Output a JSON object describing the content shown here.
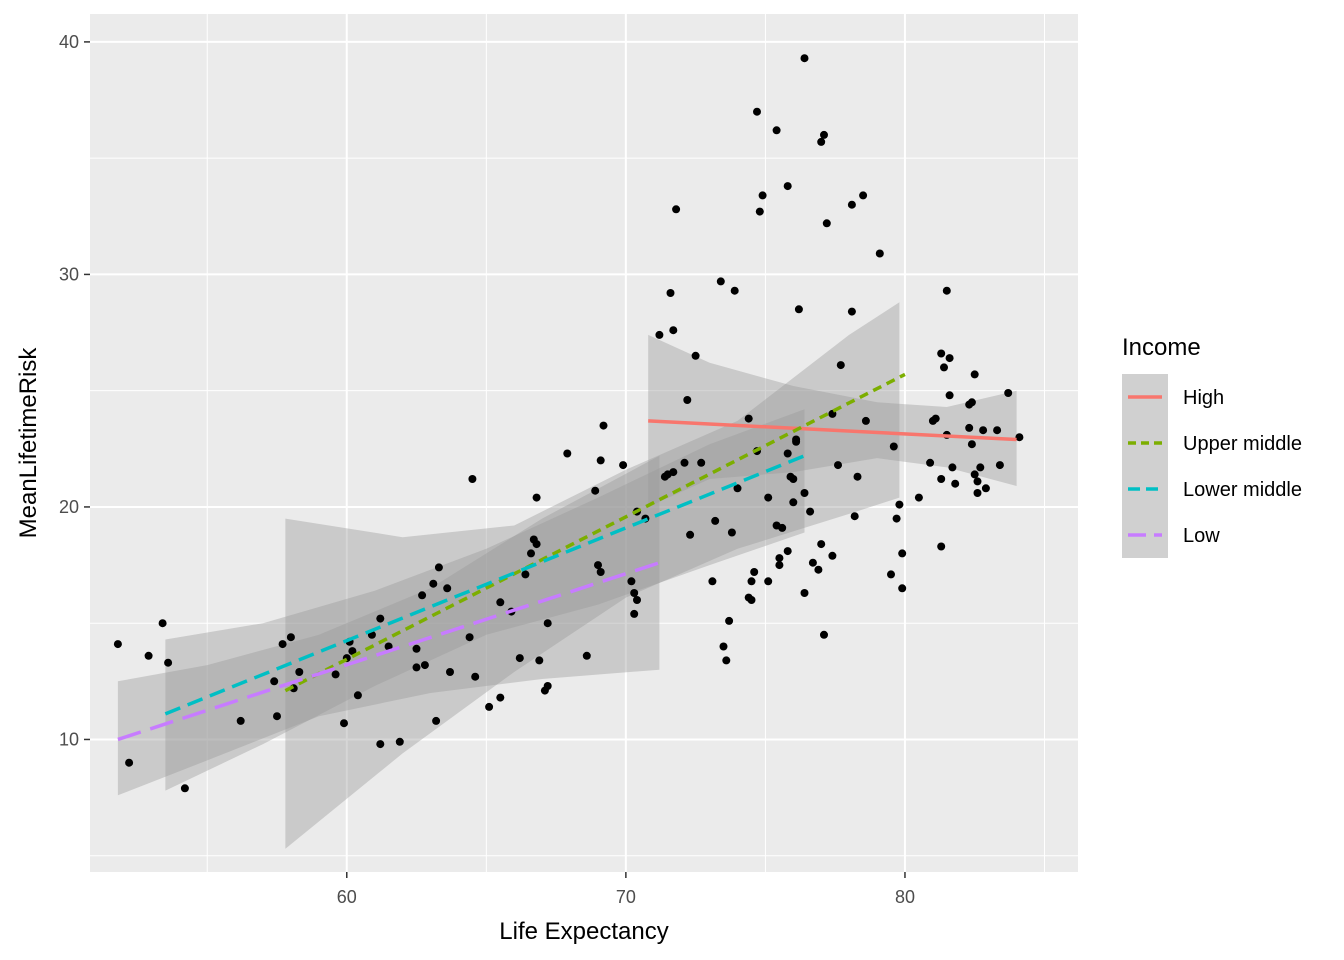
{
  "chart_data": {
    "type": "scatter",
    "xlabel": "Life Expectancy",
    "ylabel": "MeanLifetimeRisk",
    "xlim": [
      50.8,
      86.2
    ],
    "ylim": [
      4.3,
      41.2
    ],
    "xticks": [
      60,
      70,
      80
    ],
    "xminor": [
      55,
      65,
      75,
      85
    ],
    "yticks": [
      10,
      20,
      30,
      40
    ],
    "yminor": [
      5,
      15,
      25,
      35
    ],
    "panel_background": "#ebebeb",
    "grid_color": "#ffffff",
    "grid": true,
    "legend": {
      "title": "Income",
      "placement": "right",
      "entries": [
        {
          "label": "High",
          "color": "#f8766d",
          "dash": "solid"
        },
        {
          "label": "Upper middle",
          "color": "#7cae00",
          "dash": "short"
        },
        {
          "label": "Lower middle",
          "color": "#00bfc4",
          "dash": "medium"
        },
        {
          "label": "Low",
          "color": "#c77cff",
          "dash": "long"
        }
      ]
    },
    "points": [
      [
        51.8,
        14.1
      ],
      [
        52.2,
        9.0
      ],
      [
        52.9,
        13.6
      ],
      [
        53.4,
        15.0
      ],
      [
        53.6,
        13.3
      ],
      [
        54.2,
        7.9
      ],
      [
        56.2,
        10.8
      ],
      [
        57.4,
        12.5
      ],
      [
        57.5,
        11.0
      ],
      [
        57.7,
        14.1
      ],
      [
        58.0,
        14.4
      ],
      [
        58.1,
        12.2
      ],
      [
        58.3,
        12.9
      ],
      [
        59.6,
        12.8
      ],
      [
        59.9,
        10.7
      ],
      [
        60.0,
        13.5
      ],
      [
        60.1,
        14.2
      ],
      [
        60.2,
        13.8
      ],
      [
        60.4,
        11.9
      ],
      [
        60.9,
        14.5
      ],
      [
        61.2,
        15.2
      ],
      [
        61.2,
        9.8
      ],
      [
        61.5,
        14.0
      ],
      [
        61.9,
        9.9
      ],
      [
        62.5,
        13.9
      ],
      [
        62.5,
        13.1
      ],
      [
        62.7,
        16.2
      ],
      [
        62.8,
        13.2
      ],
      [
        63.1,
        16.7
      ],
      [
        63.2,
        10.8
      ],
      [
        63.3,
        17.4
      ],
      [
        63.6,
        16.5
      ],
      [
        63.7,
        12.9
      ],
      [
        64.4,
        14.4
      ],
      [
        64.5,
        21.2
      ],
      [
        64.6,
        12.7
      ],
      [
        65.1,
        11.4
      ],
      [
        65.5,
        11.8
      ],
      [
        65.5,
        15.9
      ],
      [
        65.9,
        15.5
      ],
      [
        66.2,
        13.5
      ],
      [
        66.4,
        17.1
      ],
      [
        66.6,
        18.0
      ],
      [
        66.7,
        18.6
      ],
      [
        66.8,
        18.4
      ],
      [
        66.8,
        20.4
      ],
      [
        66.9,
        13.4
      ],
      [
        67.1,
        12.1
      ],
      [
        67.2,
        12.3
      ],
      [
        67.2,
        15.0
      ],
      [
        67.9,
        22.3
      ],
      [
        68.6,
        13.6
      ],
      [
        68.9,
        20.7
      ],
      [
        69.0,
        17.5
      ],
      [
        69.1,
        17.2
      ],
      [
        69.1,
        22.0
      ],
      [
        69.2,
        23.5
      ],
      [
        69.9,
        21.8
      ],
      [
        70.2,
        16.8
      ],
      [
        70.3,
        15.4
      ],
      [
        70.3,
        16.3
      ],
      [
        70.4,
        19.8
      ],
      [
        70.4,
        16.0
      ],
      [
        70.7,
        19.5
      ],
      [
        71.2,
        27.4
      ],
      [
        71.4,
        21.3
      ],
      [
        71.5,
        21.4
      ],
      [
        71.6,
        29.2
      ],
      [
        71.7,
        21.5
      ],
      [
        71.7,
        27.6
      ],
      [
        71.8,
        32.8
      ],
      [
        72.1,
        21.9
      ],
      [
        72.2,
        24.6
      ],
      [
        72.3,
        18.8
      ],
      [
        72.5,
        26.5
      ],
      [
        72.7,
        21.9
      ],
      [
        73.1,
        16.8
      ],
      [
        73.2,
        19.4
      ],
      [
        73.4,
        29.7
      ],
      [
        73.5,
        14.0
      ],
      [
        73.6,
        13.4
      ],
      [
        73.7,
        15.1
      ],
      [
        73.8,
        18.9
      ],
      [
        73.9,
        29.3
      ],
      [
        74.0,
        20.8
      ],
      [
        74.4,
        23.8
      ],
      [
        74.4,
        16.1
      ],
      [
        74.5,
        16.0
      ],
      [
        74.5,
        16.8
      ],
      [
        74.6,
        17.2
      ],
      [
        74.7,
        37.0
      ],
      [
        74.7,
        22.4
      ],
      [
        74.8,
        32.7
      ],
      [
        74.9,
        33.4
      ],
      [
        75.1,
        20.4
      ],
      [
        75.1,
        16.8
      ],
      [
        75.4,
        36.2
      ],
      [
        75.4,
        19.2
      ],
      [
        75.5,
        17.5
      ],
      [
        75.5,
        17.8
      ],
      [
        75.6,
        19.1
      ],
      [
        75.8,
        18.1
      ],
      [
        75.8,
        33.8
      ],
      [
        75.8,
        22.3
      ],
      [
        75.9,
        21.3
      ],
      [
        76.0,
        20.2
      ],
      [
        76.0,
        21.2
      ],
      [
        76.1,
        22.8
      ],
      [
        76.1,
        22.9
      ],
      [
        76.2,
        28.5
      ],
      [
        76.4,
        20.6
      ],
      [
        76.4,
        16.3
      ],
      [
        76.4,
        39.3
      ],
      [
        76.6,
        19.8
      ],
      [
        76.7,
        17.6
      ],
      [
        76.9,
        17.3
      ],
      [
        77.0,
        35.7
      ],
      [
        77.0,
        18.4
      ],
      [
        77.1,
        36.0
      ],
      [
        77.1,
        14.5
      ],
      [
        77.2,
        32.2
      ],
      [
        77.4,
        17.9
      ],
      [
        77.4,
        24.0
      ],
      [
        77.6,
        21.8
      ],
      [
        77.7,
        26.1
      ],
      [
        78.1,
        28.4
      ],
      [
        78.1,
        33.0
      ],
      [
        78.2,
        19.6
      ],
      [
        78.3,
        21.3
      ],
      [
        78.5,
        33.4
      ],
      [
        78.6,
        23.7
      ],
      [
        79.1,
        30.9
      ],
      [
        79.5,
        17.1
      ],
      [
        79.6,
        22.6
      ],
      [
        79.7,
        19.5
      ],
      [
        79.8,
        20.1
      ],
      [
        79.9,
        16.5
      ],
      [
        79.9,
        18.0
      ],
      [
        80.5,
        20.4
      ],
      [
        80.9,
        21.9
      ],
      [
        81.0,
        23.7
      ],
      [
        81.1,
        23.8
      ],
      [
        81.3,
        26.6
      ],
      [
        81.3,
        21.2
      ],
      [
        81.3,
        18.3
      ],
      [
        81.4,
        26.0
      ],
      [
        81.5,
        23.1
      ],
      [
        81.5,
        29.3
      ],
      [
        81.6,
        26.4
      ],
      [
        81.6,
        24.8
      ],
      [
        81.7,
        21.7
      ],
      [
        81.8,
        21.0
      ],
      [
        82.3,
        23.4
      ],
      [
        82.3,
        24.4
      ],
      [
        82.4,
        22.7
      ],
      [
        82.4,
        24.5
      ],
      [
        82.5,
        25.7
      ],
      [
        82.5,
        21.4
      ],
      [
        82.6,
        21.1
      ],
      [
        82.6,
        20.6
      ],
      [
        82.7,
        21.7
      ],
      [
        82.8,
        23.3
      ],
      [
        82.9,
        20.8
      ],
      [
        83.3,
        23.3
      ],
      [
        83.4,
        21.8
      ],
      [
        83.7,
        24.9
      ],
      [
        84.1,
        23.0
      ]
    ],
    "series": [
      {
        "name": "High",
        "color": "#f8766d",
        "dash": "solid",
        "line": [
          [
            70.8,
            23.7
          ],
          [
            84.0,
            22.9
          ]
        ],
        "ribbon": {
          "x": [
            70.8,
            73.0,
            76.0,
            79.0,
            81.5,
            84.0
          ],
          "upper": [
            27.4,
            26.2,
            25.2,
            24.5,
            24.3,
            25.0
          ],
          "lower": [
            20.0,
            21.2,
            21.5,
            22.1,
            21.7,
            20.9
          ]
        }
      },
      {
        "name": "Upper middle",
        "color": "#7cae00",
        "dash": "short",
        "line": [
          [
            57.8,
            12.1
          ],
          [
            80.0,
            25.7
          ]
        ],
        "ribbon": {
          "x": [
            57.8,
            62.0,
            66.0,
            70.0,
            74.0,
            78.0,
            79.8
          ],
          "upper": [
            19.5,
            18.7,
            19.2,
            21.6,
            23.7,
            27.4,
            28.8
          ],
          "lower": [
            5.3,
            9.4,
            12.9,
            16.1,
            18.2,
            19.7,
            20.4
          ]
        }
      },
      {
        "name": "Lower middle",
        "color": "#00bfc4",
        "dash": "medium",
        "line": [
          [
            53.5,
            11.1
          ],
          [
            76.4,
            22.2
          ]
        ],
        "ribbon": {
          "x": [
            53.5,
            57.0,
            61.0,
            65.0,
            69.0,
            73.0,
            76.4
          ],
          "upper": [
            14.3,
            15.0,
            16.4,
            18.2,
            20.4,
            22.7,
            24.2
          ],
          "lower": [
            7.8,
            9.8,
            12.3,
            14.5,
            15.8,
            17.5,
            18.9
          ]
        }
      },
      {
        "name": "Low",
        "color": "#c77cff",
        "dash": "long",
        "line": [
          [
            51.8,
            10.0
          ],
          [
            71.2,
            17.6
          ]
        ],
        "ribbon": {
          "x": [
            51.8,
            55.0,
            59.0,
            63.0,
            67.0,
            71.2
          ],
          "upper": [
            12.5,
            13.2,
            14.5,
            16.5,
            19.5,
            22.2
          ],
          "lower": [
            7.6,
            9.1,
            11.0,
            12.0,
            12.6,
            13.0
          ]
        }
      }
    ]
  }
}
